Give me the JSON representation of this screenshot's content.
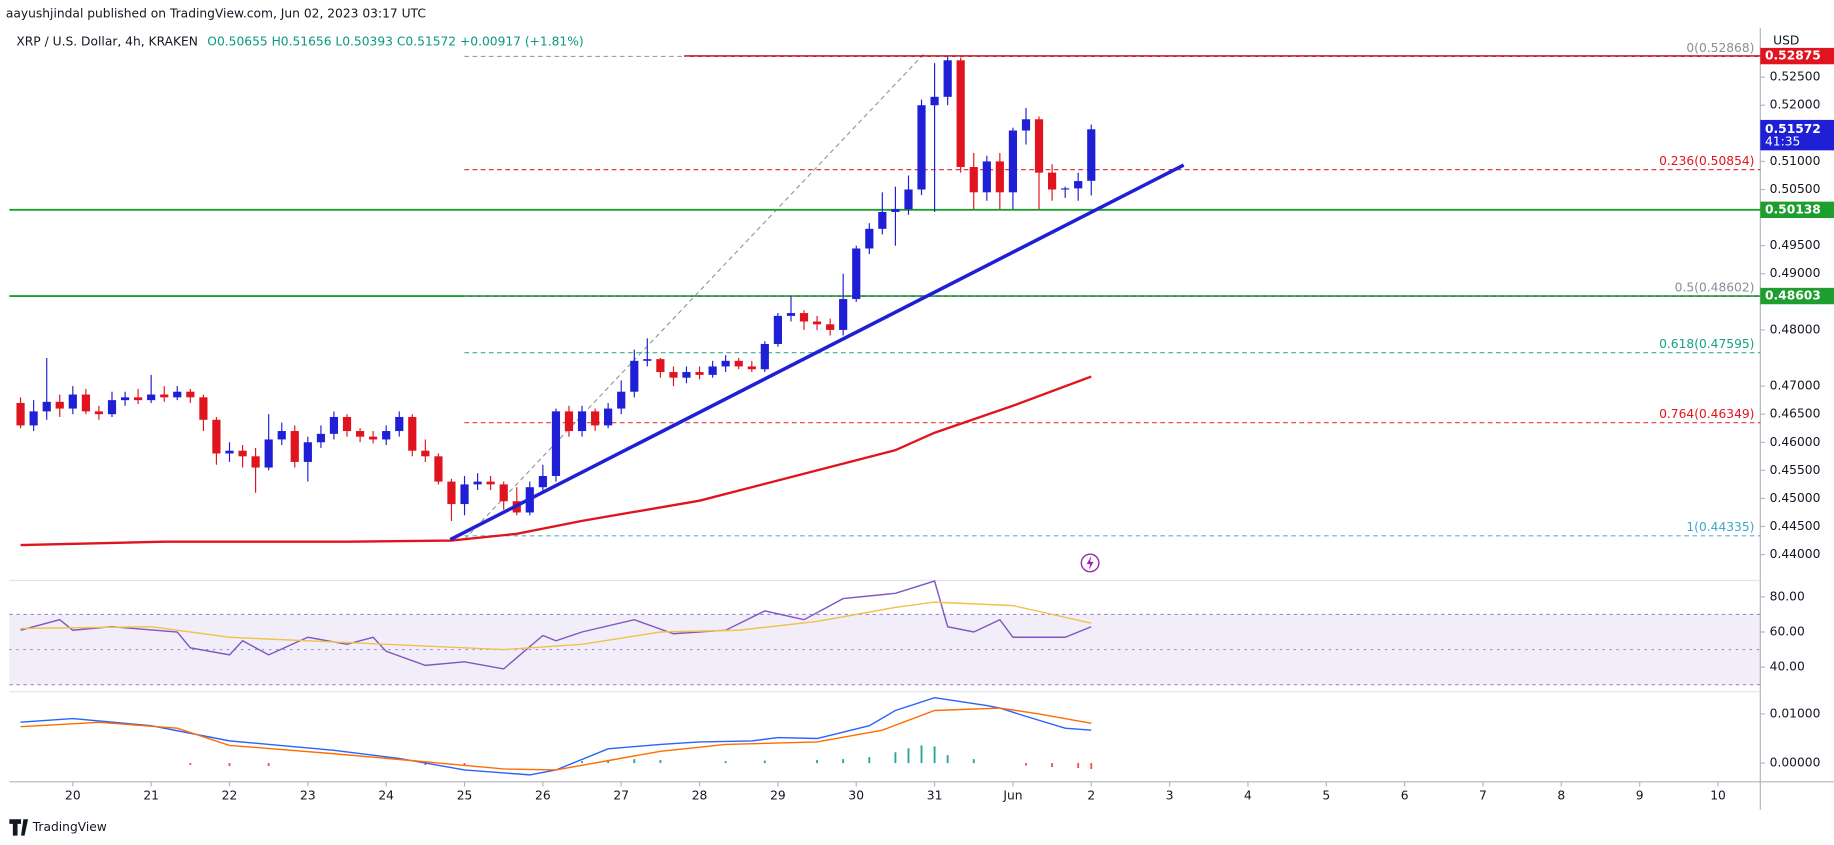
{
  "page": {
    "publisher": "aayushjindal published on TradingView.com, Jun 02, 2023 03:17 UTC",
    "brand": "TradingView"
  },
  "chart_data": [
    {
      "type": "candlestick",
      "title": "XRP / U.S. Dollar, 4h, KRAKEN",
      "ohlc_summary": "O0.50655 H0.51656 L0.50393 C0.51572 +0.00917 (+1.81%)",
      "axis_label": "USD",
      "up_color": "#1f1fd6",
      "down_color": "#e0141e",
      "x": [
        19.333,
        19.5,
        19.667,
        19.833,
        20,
        20.167,
        20.333,
        20.5,
        20.667,
        20.833,
        21,
        21.167,
        21.333,
        21.5,
        21.667,
        21.833,
        22,
        22.167,
        22.333,
        22.5,
        22.667,
        22.833,
        23,
        23.167,
        23.333,
        23.5,
        23.667,
        23.833,
        24,
        24.167,
        24.333,
        24.5,
        24.667,
        24.833,
        25,
        25.167,
        25.333,
        25.5,
        25.667,
        25.833,
        26,
        26.167,
        26.333,
        26.5,
        26.667,
        26.833,
        27,
        27.167,
        27.333,
        27.5,
        27.667,
        27.833,
        28,
        28.167,
        28.333,
        28.5,
        28.667,
        28.833,
        29,
        29.167,
        29.333,
        29.5,
        29.667,
        29.833,
        30,
        30.167,
        30.333,
        30.5,
        30.667,
        30.833,
        31,
        31.167,
        31.333,
        31.5,
        31.667,
        31.833,
        32,
        32.167,
        32.333,
        32.5,
        32.667,
        32.833,
        33
      ],
      "open": [
        0.467,
        0.463,
        0.4655,
        0.4672,
        0.466,
        0.4685,
        0.4655,
        0.465,
        0.4675,
        0.468,
        0.4675,
        0.4685,
        0.468,
        0.469,
        0.468,
        0.464,
        0.458,
        0.4585,
        0.4575,
        0.4555,
        0.4605,
        0.462,
        0.4565,
        0.46,
        0.4615,
        0.4645,
        0.462,
        0.461,
        0.4605,
        0.462,
        0.4645,
        0.4585,
        0.4575,
        0.453,
        0.449,
        0.4525,
        0.453,
        0.4525,
        0.4495,
        0.4475,
        0.452,
        0.454,
        0.4655,
        0.462,
        0.4655,
        0.463,
        0.466,
        0.469,
        0.4745,
        0.4748,
        0.4725,
        0.4715,
        0.4725,
        0.472,
        0.4735,
        0.4745,
        0.4735,
        0.473,
        0.4775,
        0.4825,
        0.483,
        0.4815,
        0.481,
        0.48,
        0.4855,
        0.4945,
        0.498,
        0.501,
        0.5015,
        0.505,
        0.52,
        0.5215,
        0.528,
        0.509,
        0.5045,
        0.51,
        0.5045,
        0.5155,
        0.5175,
        0.508,
        0.505,
        0.5052,
        0.50655
      ],
      "high": [
        0.468,
        0.4675,
        0.475,
        0.4685,
        0.47,
        0.4695,
        0.4665,
        0.469,
        0.469,
        0.4695,
        0.472,
        0.47,
        0.47,
        0.4695,
        0.4685,
        0.4645,
        0.46,
        0.4595,
        0.459,
        0.465,
        0.4635,
        0.463,
        0.461,
        0.463,
        0.4655,
        0.465,
        0.4625,
        0.462,
        0.463,
        0.4655,
        0.465,
        0.4605,
        0.458,
        0.4535,
        0.454,
        0.4545,
        0.454,
        0.453,
        0.452,
        0.453,
        0.456,
        0.466,
        0.4665,
        0.4665,
        0.466,
        0.467,
        0.471,
        0.4765,
        0.4785,
        0.475,
        0.4735,
        0.4735,
        0.4735,
        0.4745,
        0.4755,
        0.475,
        0.4745,
        0.478,
        0.483,
        0.486,
        0.4835,
        0.4825,
        0.482,
        0.49,
        0.495,
        0.499,
        0.5045,
        0.5055,
        0.5075,
        0.521,
        0.5275,
        0.5287,
        0.5285,
        0.5115,
        0.511,
        0.5115,
        0.516,
        0.5195,
        0.518,
        0.5095,
        0.5055,
        0.508,
        0.51656
      ],
      "low": [
        0.4625,
        0.462,
        0.464,
        0.4645,
        0.465,
        0.465,
        0.464,
        0.4645,
        0.4665,
        0.4668,
        0.467,
        0.4672,
        0.4675,
        0.467,
        0.462,
        0.456,
        0.4565,
        0.4555,
        0.451,
        0.455,
        0.4595,
        0.4555,
        0.453,
        0.459,
        0.4605,
        0.461,
        0.46,
        0.4598,
        0.4595,
        0.461,
        0.4575,
        0.4565,
        0.4525,
        0.446,
        0.447,
        0.4515,
        0.4515,
        0.448,
        0.447,
        0.447,
        0.451,
        0.453,
        0.461,
        0.461,
        0.462,
        0.4625,
        0.465,
        0.468,
        0.4735,
        0.4715,
        0.47,
        0.4705,
        0.4712,
        0.4715,
        0.4725,
        0.473,
        0.4725,
        0.4725,
        0.477,
        0.4815,
        0.48,
        0.48,
        0.479,
        0.479,
        0.485,
        0.4935,
        0.497,
        0.495,
        0.5005,
        0.504,
        0.501,
        0.52,
        0.508,
        0.5015,
        0.503,
        0.5015,
        0.5015,
        0.513,
        0.5015,
        0.503,
        0.5035,
        0.503,
        0.50393
      ],
      "close": [
        0.463,
        0.4655,
        0.4672,
        0.466,
        0.4685,
        0.4655,
        0.465,
        0.4675,
        0.468,
        0.4675,
        0.4685,
        0.468,
        0.469,
        0.468,
        0.464,
        0.458,
        0.4585,
        0.4575,
        0.4555,
        0.4605,
        0.462,
        0.4565,
        0.46,
        0.4615,
        0.4645,
        0.462,
        0.461,
        0.4605,
        0.462,
        0.4645,
        0.4585,
        0.4575,
        0.453,
        0.449,
        0.4525,
        0.453,
        0.4525,
        0.4495,
        0.4475,
        0.452,
        0.454,
        0.4655,
        0.462,
        0.4655,
        0.463,
        0.466,
        0.469,
        0.4745,
        0.4748,
        0.4725,
        0.4715,
        0.4725,
        0.472,
        0.4735,
        0.4745,
        0.4735,
        0.473,
        0.4775,
        0.4825,
        0.483,
        0.4815,
        0.481,
        0.48,
        0.4855,
        0.4945,
        0.498,
        0.501,
        0.5015,
        0.505,
        0.52,
        0.5215,
        0.528,
        0.509,
        0.5045,
        0.51,
        0.5045,
        0.5155,
        0.5175,
        0.508,
        0.505,
        0.5052,
        0.5065,
        0.51572
      ],
      "ma": {
        "color": "#e0141e",
        "x": [
          19.333,
          21.167,
          23.5,
          24.833,
          25.667,
          26.5,
          28,
          29.5,
          30.5,
          31,
          32,
          33
        ],
        "values": [
          0.4417,
          0.4423,
          0.4423,
          0.4425,
          0.4437,
          0.446,
          0.4496,
          0.455,
          0.4586,
          0.4617,
          0.4665,
          0.4717
        ]
      },
      "xlim": [
        19.19,
        41.54
      ],
      "xticks": [
        20,
        21,
        22,
        23,
        24,
        25,
        26,
        27,
        28,
        29,
        30,
        31,
        {
          "value": 32,
          "label": "Jun"
        },
        {
          "value": 33,
          "label": "2"
        },
        {
          "value": 34,
          "label": "3"
        },
        {
          "value": 35,
          "label": "4"
        },
        {
          "value": 36,
          "label": "5"
        },
        {
          "value": 37,
          "label": "6"
        },
        {
          "value": 38,
          "label": "7"
        },
        {
          "value": 39,
          "label": "8"
        },
        {
          "value": 40,
          "label": "9"
        },
        {
          "value": 41,
          "label": "10"
        }
      ],
      "ylim": [
        0.4356,
        0.5329
      ],
      "yticks": [
        {
          "value": 0.525,
          "label": "0.52500"
        },
        {
          "value": 0.52,
          "label": "0.52000"
        },
        {
          "value": 0.51,
          "label": "0.51000"
        },
        {
          "value": 0.505,
          "label": "0.50500"
        },
        {
          "value": 0.495,
          "label": "0.49500"
        },
        {
          "value": 0.49,
          "label": "0.49000"
        },
        {
          "value": 0.48,
          "label": "0.48000"
        },
        {
          "value": 0.47,
          "label": "0.47000"
        },
        {
          "value": 0.465,
          "label": "0.46500"
        },
        {
          "value": 0.46,
          "label": "0.46000"
        },
        {
          "value": 0.455,
          "label": "0.45500"
        },
        {
          "value": 0.45,
          "label": "0.45000"
        },
        {
          "value": 0.445,
          "label": "0.44500"
        },
        {
          "value": 0.44,
          "label": "0.44000"
        }
      ],
      "levels": [
        {
          "value": 0.52875,
          "label": "0.52875",
          "color": "#e0141e"
        },
        {
          "value": 0.50138,
          "label": "0.50138",
          "color": "#1e9e2e"
        },
        {
          "value": 0.48603,
          "label": "0.48603",
          "color": "#1e9e2e"
        }
      ],
      "last_price": {
        "value": 0.51572,
        "label": "0.51572",
        "countdown": "41:35",
        "color": "#1f1fd6"
      },
      "fib": [
        {
          "value": 0.52868,
          "label": "0(0.52868)",
          "color": "#8a8e99"
        },
        {
          "value": 0.50854,
          "label": "0.236(0.50854)",
          "color": "#e0141e"
        },
        {
          "value": 0.48602,
          "label": "0.5(0.48602)",
          "color": "#8a8e99"
        },
        {
          "value": 0.47595,
          "label": "0.618(0.47595)",
          "color": "#14a37f"
        },
        {
          "value": 0.46349,
          "label": "0.764(0.46349)",
          "color": "#e0141e"
        },
        {
          "value": 0.44335,
          "label": "1(0.44335)",
          "color": "#3fa7c9"
        }
      ]
    },
    {
      "type": "line",
      "xlim": [
        19.19,
        41.54
      ],
      "ylim": [
        26.7,
        89.3
      ],
      "yticks": [
        {
          "value": 80,
          "label": "80.00"
        },
        {
          "value": 60,
          "label": "60.00"
        },
        {
          "value": 40,
          "label": "40.00"
        }
      ],
      "band": [
        30,
        70
      ],
      "midline": 50,
      "band_color": "#7e57c2",
      "series": [
        {
          "color": "#7e57c2",
          "x": [
            19.333,
            19.833,
            20,
            20.5,
            21.333,
            21.5,
            22,
            22.167,
            22.5,
            23,
            23.5,
            23.833,
            24,
            24.5,
            25,
            25.5,
            26,
            26.167,
            26.5,
            27.167,
            27.667,
            28.333,
            28.833,
            29.333,
            29.833,
            30.5,
            31,
            31.167,
            31.5,
            31.833,
            32,
            32.667,
            33
          ],
          "values": [
            61,
            67,
            61,
            63,
            60,
            51,
            47,
            55,
            47,
            57,
            53,
            57,
            49,
            41,
            43,
            39,
            58,
            55,
            60,
            67,
            59,
            61,
            72,
            67,
            79,
            82,
            89,
            63,
            60,
            67,
            57,
            57,
            63
          ]
        },
        {
          "color": "#f0c24a",
          "x": [
            19.333,
            21,
            22,
            23.5,
            24.5,
            25.5,
            26.5,
            27.5,
            28.5,
            29.5,
            30.5,
            31,
            32,
            33
          ],
          "values": [
            62,
            63,
            57,
            54,
            52,
            50,
            53,
            60,
            61,
            66,
            74,
            77,
            75,
            65
          ]
        }
      ]
    },
    {
      "type": "line",
      "xlim": [
        19.19,
        41.54
      ],
      "ylim": [
        -0.00357,
        0.01429
      ],
      "yticks": [
        {
          "value": 0.01,
          "label": "0.01000"
        },
        {
          "value": 0,
          "label": "0.00000"
        }
      ],
      "histogram": {
        "up_color": "#26a69a",
        "down_color": "#ef5350",
        "x": [
          21.5,
          22,
          22.5,
          24.5,
          25,
          26.5,
          26.833,
          27.167,
          27.5,
          28.333,
          28.833,
          29.5,
          29.833,
          30.167,
          30.5,
          30.667,
          30.833,
          31,
          31.167,
          31.5,
          32.167,
          32.5,
          32.833,
          33
        ],
        "values": [
          -0.0004,
          -0.0006,
          -0.0006,
          -0.0004,
          -0.0006,
          0.0004,
          0.0006,
          0.0008,
          0.0006,
          0.0004,
          0.0005,
          0.0006,
          0.0008,
          0.0012,
          0.0022,
          0.003,
          0.0036,
          0.0034,
          0.0016,
          0.0008,
          -0.0005,
          -0.0008,
          -0.001,
          -0.0012
        ]
      },
      "series": [
        {
          "color": "#2962ff",
          "x": [
            19.333,
            20,
            21,
            22,
            23.333,
            24.167,
            25,
            25.833,
            26.167,
            26.833,
            27.5,
            28,
            28.667,
            29,
            29.5,
            30.167,
            30.5,
            31,
            31.667,
            31.833,
            32.167,
            32.667,
            33
          ],
          "values": [
            0.00833,
            0.00905,
            0.0076,
            0.00452,
            0.0026,
            0.00095,
            -0.0014,
            -0.0024,
            -0.0014,
            0.0029,
            0.0038,
            0.0043,
            0.0045,
            0.0052,
            0.005,
            0.0076,
            0.0107,
            0.0133,
            0.0117,
            0.0112,
            0.0095,
            0.0071,
            0.0067
          ]
        },
        {
          "color": "#ff6d00",
          "x": [
            19.333,
            20.333,
            21.333,
            22,
            23.333,
            24.333,
            25.5,
            26.167,
            26.833,
            27.5,
            28.333,
            29.5,
            30.333,
            31,
            31.833,
            32.333,
            33
          ],
          "values": [
            0.0074,
            0.0083,
            0.0071,
            0.0036,
            0.0019,
            0.0005,
            -0.0012,
            -0.0014,
            0.0005,
            0.0024,
            0.0038,
            0.0043,
            0.0067,
            0.0107,
            0.0112,
            0.01,
            0.0081
          ]
        }
      ]
    }
  ]
}
